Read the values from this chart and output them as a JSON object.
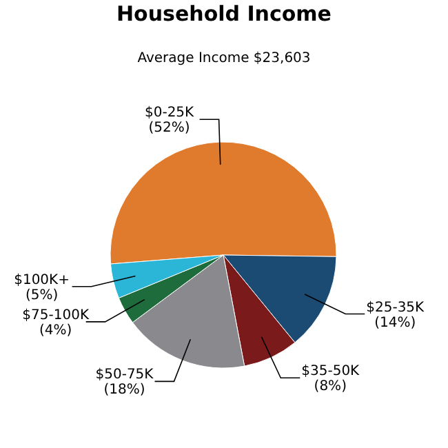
{
  "chart_data": {
    "type": "pie",
    "title": "Household Income",
    "subtitle": "Average Income  $23,603",
    "categories": [
      "$0-25K",
      "$25-35K",
      "$35-50K",
      "$50-75K",
      "$75-100K",
      "$100K+"
    ],
    "values": [
      52,
      14,
      8,
      18,
      4,
      5
    ],
    "value_labels": [
      "(52%)",
      "(14%)",
      "(8%)",
      "(18%)",
      "(4%)",
      "(5%)"
    ],
    "colors": [
      "#e07a2c",
      "#1b4a73",
      "#7a1a1a",
      "#8a8a8e",
      "#1e6b3c",
      "#2bb5d6"
    ]
  }
}
